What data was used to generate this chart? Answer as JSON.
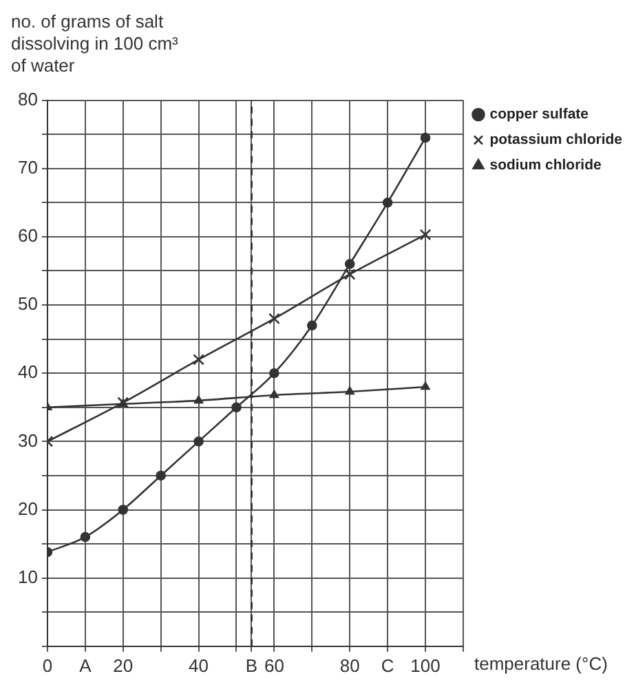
{
  "chart_data": {
    "type": "line",
    "ylabel": "no. of grams of salt dissolving in 100 cm³ of water",
    "xlabel": "temperature (°C)",
    "xlim": [
      0,
      110
    ],
    "ylim": [
      0,
      80
    ],
    "xticks": [
      0,
      {
        "value": 10,
        "label": "A"
      },
      20,
      {
        "value": 30,
        "label": null
      },
      40,
      {
        "value": 50,
        "label": null
      },
      {
        "value": 54,
        "label": "B"
      },
      60,
      {
        "value": 70,
        "label": null
      },
      80,
      {
        "value": 90,
        "label": "C"
      },
      100,
      {
        "value": 110,
        "label": null
      }
    ],
    "yticks": [
      {
        "value": 0,
        "label": null
      },
      {
        "value": 5,
        "label": null
      },
      10,
      {
        "value": 15,
        "label": null
      },
      20,
      {
        "value": 25,
        "label": null
      },
      30,
      {
        "value": 35,
        "label": null
      },
      40,
      {
        "value": 45,
        "label": null
      },
      50,
      {
        "value": 55,
        "label": null
      },
      60,
      {
        "value": 65,
        "label": null
      },
      70,
      {
        "value": 75,
        "label": null
      },
      80
    ],
    "grid": true,
    "legend": "right",
    "series": [
      {
        "name": "copper sulfate",
        "color": "#333333",
        "marker": "circle",
        "x": [
          0,
          10,
          20,
          30,
          40,
          50,
          60,
          70,
          80,
          90,
          100
        ],
        "values": [
          13.8,
          16,
          20,
          25,
          30,
          35,
          40,
          47,
          56,
          65,
          74.5
        ]
      },
      {
        "name": "potassium chloride",
        "color": "#333333",
        "marker": "cross",
        "x": [
          0,
          20,
          40,
          60,
          80,
          100
        ],
        "values": [
          30,
          35.7,
          42,
          48,
          54.5,
          60.3
        ]
      },
      {
        "name": "sodium chloride",
        "color": "#333333",
        "marker": "triangle",
        "x": [
          0,
          20,
          40,
          60,
          80,
          100
        ],
        "values": [
          35,
          35.5,
          36,
          36.8,
          37.3,
          38
        ]
      }
    ],
    "ref_lines": [
      {
        "axis": "x",
        "value": 54,
        "label": null,
        "line_style": "dashed",
        "color": "#333333"
      }
    ]
  }
}
